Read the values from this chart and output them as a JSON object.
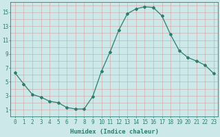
{
  "x": [
    0,
    1,
    2,
    3,
    4,
    5,
    6,
    7,
    8,
    9,
    10,
    11,
    12,
    13,
    14,
    15,
    16,
    17,
    18,
    19,
    20,
    21,
    22,
    23
  ],
  "y": [
    6.3,
    4.7,
    3.2,
    2.8,
    2.2,
    2.0,
    1.3,
    1.1,
    1.1,
    2.9,
    6.5,
    9.3,
    12.4,
    14.8,
    15.5,
    15.8,
    15.7,
    14.5,
    11.8,
    9.5,
    8.5,
    8.0,
    7.4,
    6.2
  ],
  "line_color": "#2d7d6e",
  "marker": "D",
  "marker_size": 2.0,
  "bg_color": "#cce8e8",
  "grid_color_major": "#d4a0a0",
  "grid_color_minor": "#d4a0a0",
  "axis_color": "#2d7d6e",
  "tick_color": "#2d7d6e",
  "xlabel": "Humidex (Indice chaleur)",
  "xlabel_fontsize": 6.5,
  "tick_fontsize": 5.5,
  "ylim": [
    0,
    16.5
  ],
  "xlim": [
    -0.5,
    23.5
  ],
  "yticks": [
    1,
    3,
    5,
    7,
    9,
    11,
    13,
    15
  ],
  "xticks": [
    0,
    1,
    2,
    3,
    4,
    5,
    6,
    7,
    8,
    9,
    10,
    11,
    12,
    13,
    14,
    15,
    16,
    17,
    18,
    19,
    20,
    21,
    22,
    23
  ]
}
